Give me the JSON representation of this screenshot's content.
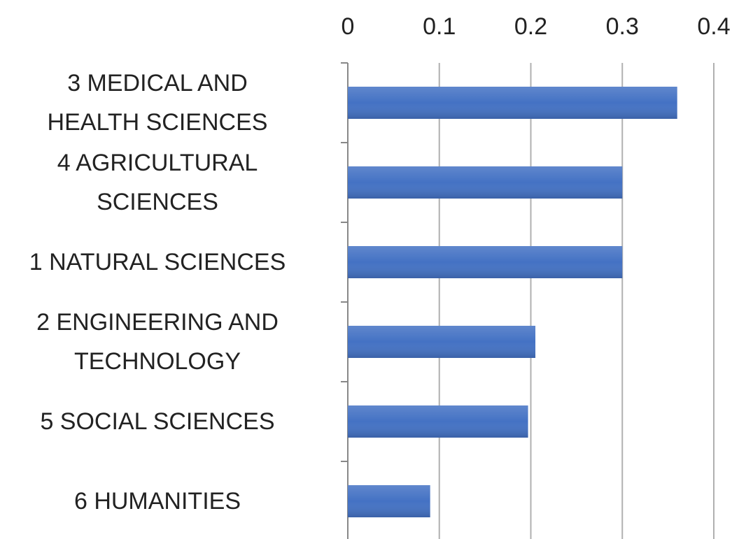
{
  "chart_data": {
    "type": "barh",
    "categories": [
      "3 MEDICAL AND\nHEALTH SCIENCES",
      "4 AGRICULTURAL\nSCIENCES",
      "1 NATURAL SCIENCES",
      "2 ENGINEERING AND\nTECHNOLOGY",
      "5 SOCIAL SCIENCES",
      "6 HUMANITIES"
    ],
    "values": [
      0.36,
      0.3,
      0.3,
      0.205,
      0.197,
      0.09
    ],
    "color": "#4472c4",
    "xlim": [
      0,
      0.4
    ],
    "xticks": [
      0,
      0.1,
      0.2,
      0.3,
      0.4
    ],
    "grid": true
  }
}
